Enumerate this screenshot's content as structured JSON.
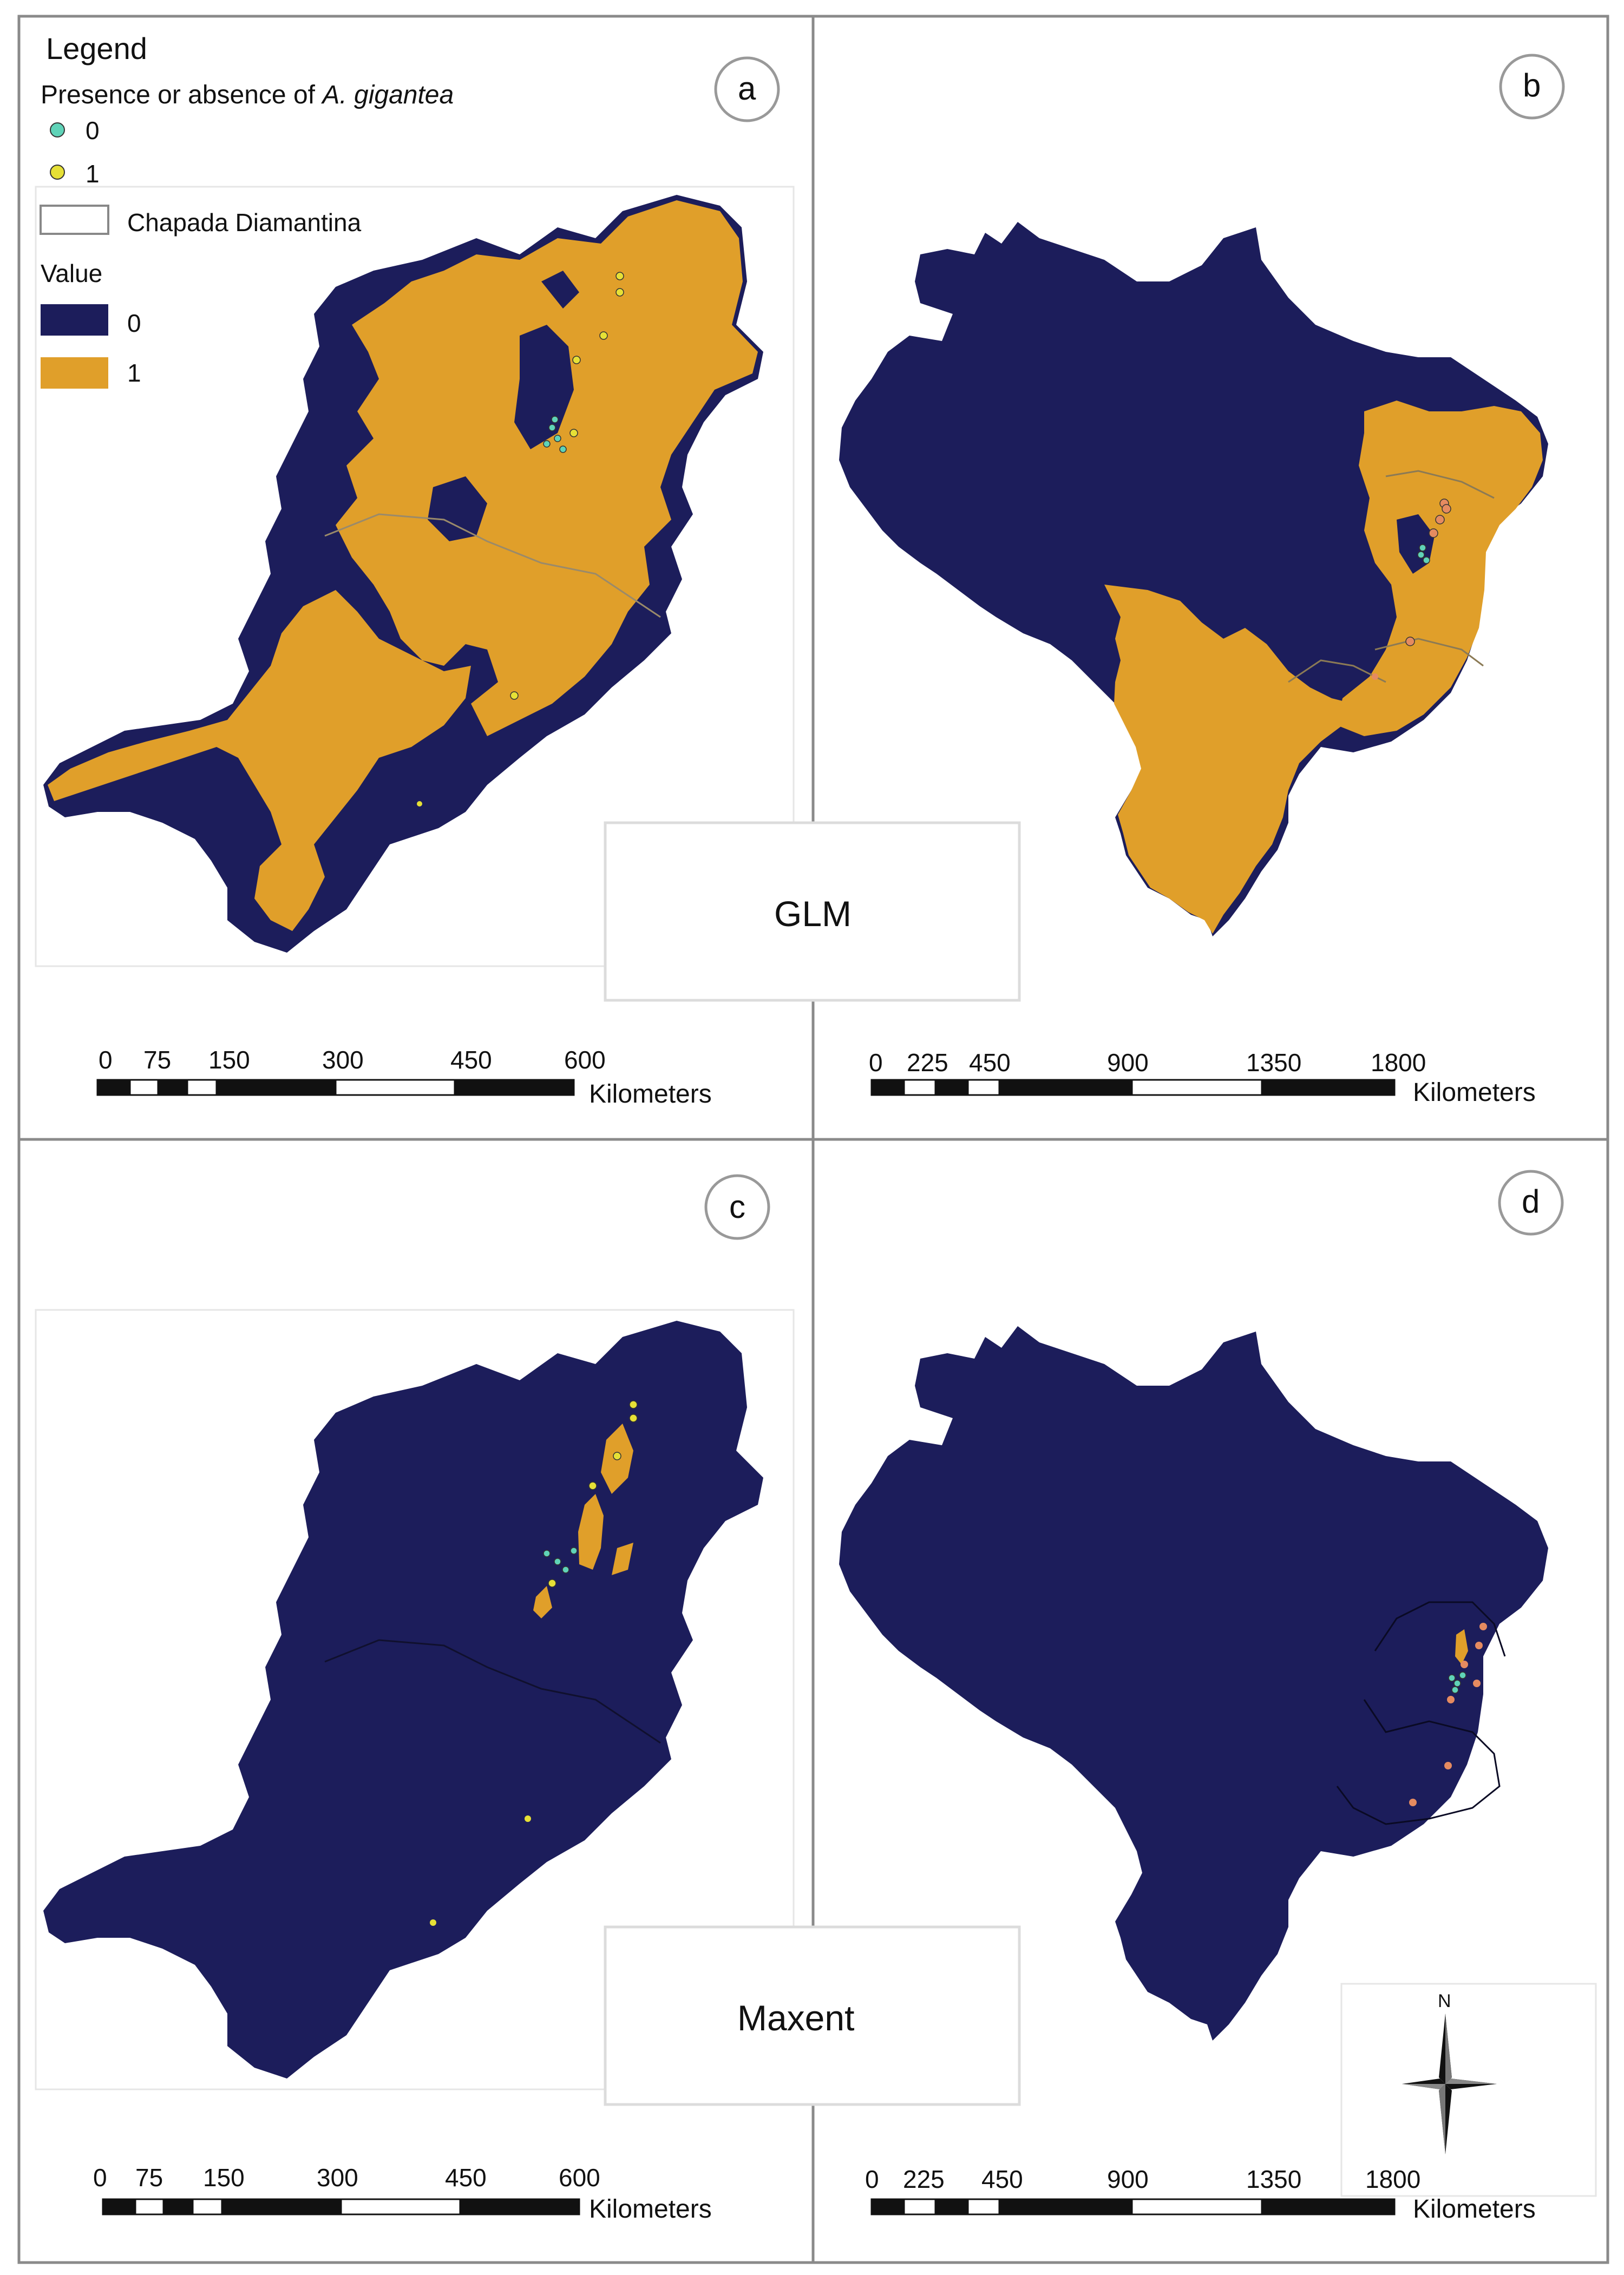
{
  "legend": {
    "title": "Legend",
    "presence_title_prefix": "Presence or absence of",
    "species": "A. gigantea",
    "point_classes": [
      {
        "label": "0",
        "color": "#5fd3b8"
      },
      {
        "label": "1",
        "color": "#e6e036"
      }
    ],
    "boundary_label": "Chapada Diamantina",
    "value_title": "Value",
    "value_classes": [
      {
        "label": "0",
        "color": "#1c1d5b"
      },
      {
        "label": "1",
        "color": "#e09f2a"
      }
    ]
  },
  "panels": [
    {
      "letter": "a",
      "model": "GLM",
      "extent": "state"
    },
    {
      "letter": "b",
      "model": "GLM",
      "extent": "country"
    },
    {
      "letter": "c",
      "model": "Maxent",
      "extent": "state"
    },
    {
      "letter": "d",
      "model": "Maxent",
      "extent": "country"
    }
  ],
  "models": {
    "top": "GLM",
    "bottom": "Maxent"
  },
  "scale_state": {
    "ticks": [
      "0",
      "75",
      "150",
      "300",
      "450",
      "600"
    ],
    "unit": "Kilometers"
  },
  "scale_country": {
    "ticks": [
      "0",
      "225",
      "450",
      "900",
      "1350",
      "1800"
    ],
    "unit": "Kilometers"
  },
  "north_label": "N",
  "colors": {
    "absent": "#1c1d5b",
    "present": "#e09f2a",
    "frame": "#8a8a8a",
    "absence_point": "#5fd3b8",
    "presence_point": "#e6e036",
    "presence_point_country": "#e58b60"
  }
}
